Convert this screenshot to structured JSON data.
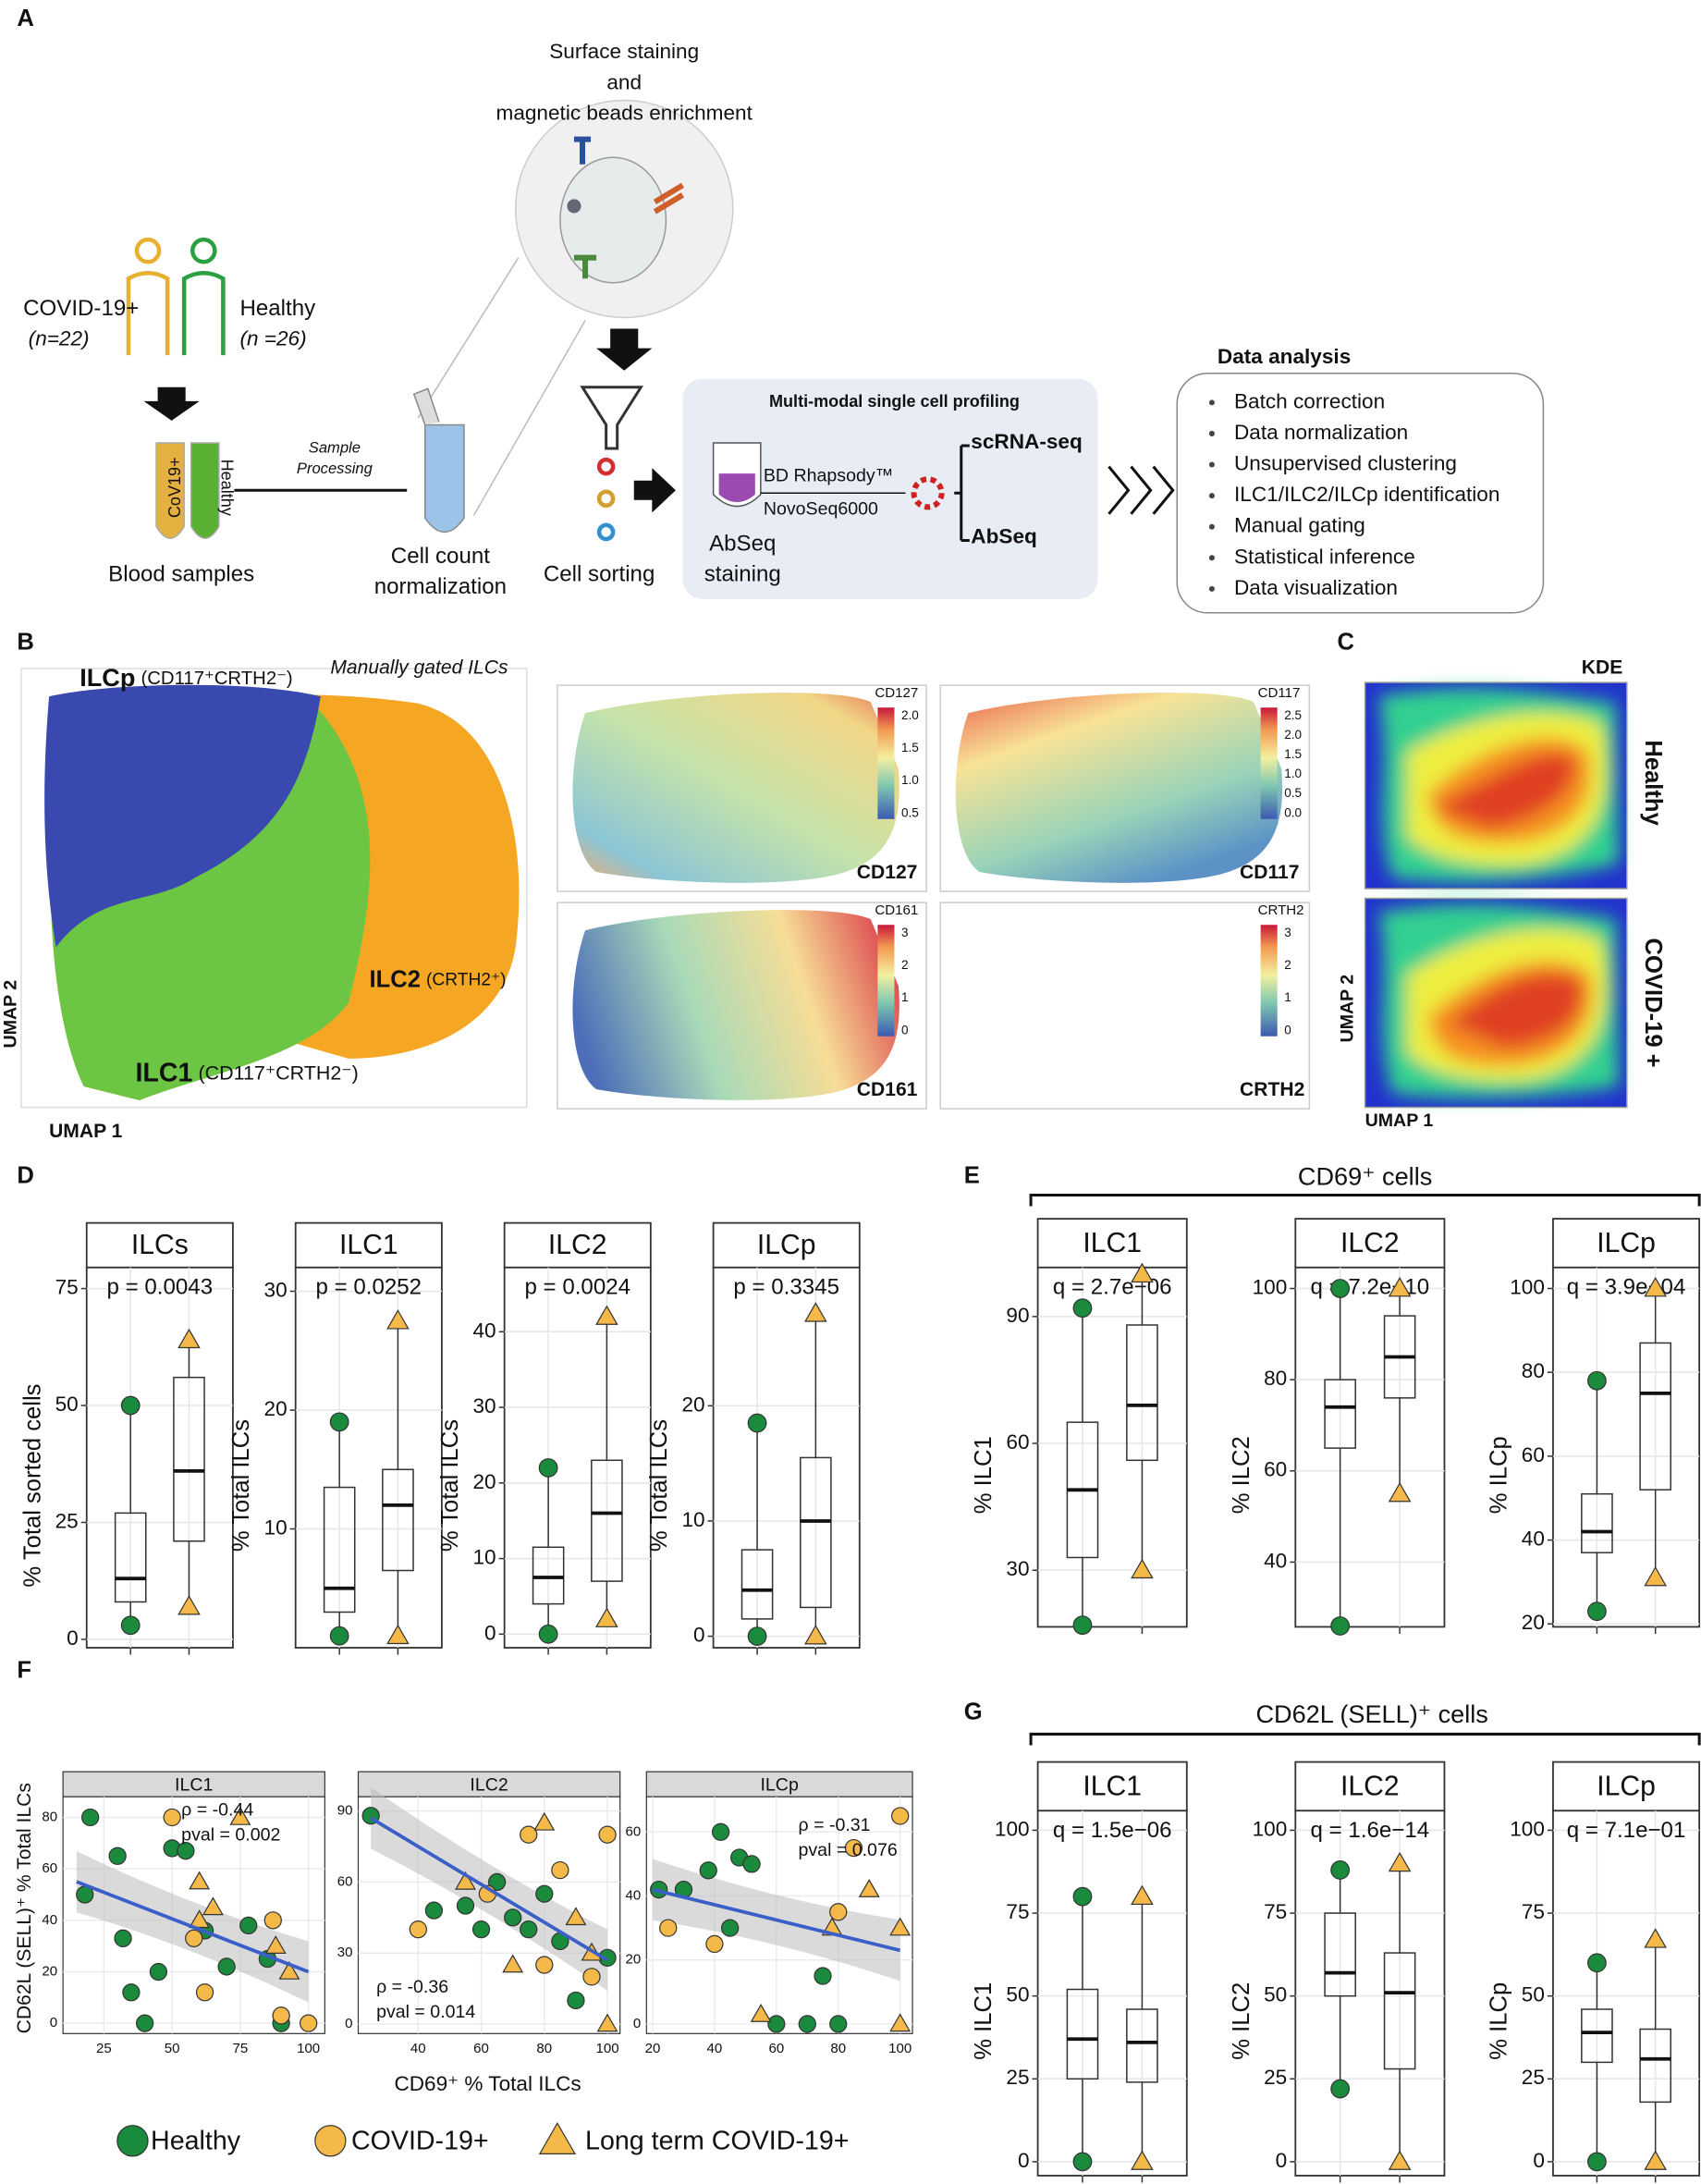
{
  "panel_labels": [
    "A",
    "B",
    "C",
    "D",
    "E",
    "F",
    "G"
  ],
  "workflow": {
    "staining": [
      "Surface staining",
      "and",
      "magnetic beads enrichment"
    ],
    "covid": {
      "label": "COVID-19+",
      "n": "(n=22)"
    },
    "healthy": {
      "label": "Healthy",
      "n": "(n =26)"
    },
    "tube_labels": [
      "CoV19+",
      "Healthy"
    ],
    "blood": "Blood samples",
    "processing": [
      "Sample",
      "Processing"
    ],
    "normalization": [
      "Cell count",
      "normalization"
    ],
    "sorting": "Cell sorting",
    "profiling": {
      "title": "Multi-modal single cell profiling",
      "platform": [
        "BD Rhapsody™",
        "NovoSeq6000"
      ],
      "outputs": [
        "scRNA-seq",
        "AbSeq"
      ],
      "staining": [
        "AbSeq",
        "staining"
      ]
    },
    "analysis": {
      "title": "Data analysis",
      "steps": [
        "Batch correction",
        "Data normalization",
        "Unsupervised clustering",
        "ILC1/ILC2/ILCp identification",
        "Manual gating",
        "Statistical inference",
        "Data visualization"
      ]
    }
  },
  "umap": {
    "clusters": [
      {
        "label": "ILCp",
        "detail": "(CD117⁺CRTH2⁻)"
      },
      {
        "label": "ILC2",
        "detail": "(CRTH2⁺)"
      },
      {
        "label": "ILC1",
        "detail": "(CD117⁺CRTH2⁻)"
      }
    ],
    "note": "Manually gated ILCs",
    "xlabel": "UMAP 1",
    "ylabel": "UMAP 2",
    "markers": [
      {
        "name": "CD127",
        "ticks": [
          "2.0",
          "1.5",
          "1.0",
          "0.5"
        ]
      },
      {
        "name": "CD117",
        "ticks": [
          "2.5",
          "2.0",
          "1.5",
          "1.0",
          "0.5",
          "0.0"
        ]
      },
      {
        "name": "CD161",
        "ticks": [
          "3",
          "2",
          "1",
          "0"
        ]
      },
      {
        "name": "CRTH2",
        "ticks": [
          "3",
          "2",
          "1",
          "0"
        ]
      }
    ]
  },
  "kde": {
    "title": "KDE",
    "conditions": [
      "Healthy",
      "COVID-19 +"
    ],
    "xlabel": "UMAP 1",
    "ylabel": "UMAP 2"
  },
  "panel_e_title": "CD69⁺ cells",
  "panel_g_title": "CD62L (SELL)⁺ cells",
  "panel_f_labels": {
    "x": "CD69⁺ % Total ILCs",
    "y": "CD62L (SELL)⁺ % Total ILCs"
  },
  "legend": [
    {
      "name": "Healthy",
      "color": "#1a8a3c",
      "shape": "circle"
    },
    {
      "name": "COVID-19+",
      "color": "#f5b949",
      "shape": "circle"
    },
    {
      "name": "Long term COVID-19+",
      "color": "#f5b949",
      "shape": "triangle"
    }
  ],
  "chart_data": [
    {
      "type": "box",
      "title": "ILCs",
      "stat": "p = 0.0043",
      "ylabel": "% Total sorted cells",
      "ylim": [
        -1.8,
        79.5
      ],
      "yticks": [
        0,
        25,
        50,
        75
      ],
      "boxes": [
        {
          "whislo": 3,
          "q1": 8,
          "med": 13,
          "q3": 27,
          "whishi": 50
        },
        {
          "whislo": 7,
          "q1": 21,
          "med": 36,
          "q3": 56,
          "whishi": 64
        }
      ]
    },
    {
      "type": "box",
      "title": "ILC1",
      "stat": "p = 0.0252",
      "ylabel": "% Total ILCs",
      "ylim": [
        0,
        32
      ],
      "yticks": [
        10,
        20,
        30
      ],
      "boxes": [
        {
          "whislo": 1,
          "q1": 3,
          "med": 5,
          "q3": 13.5,
          "whishi": 19
        },
        {
          "whislo": 1,
          "q1": 6.5,
          "med": 12,
          "q3": 15,
          "whishi": 27.5
        }
      ]
    },
    {
      "type": "box",
      "title": "ILC2",
      "stat": "p = 0.0024",
      "ylabel": "% Total ILCs",
      "ylim": [
        -1.8,
        48.5
      ],
      "yticks": [
        0,
        10,
        20,
        30,
        40
      ],
      "boxes": [
        {
          "whislo": 0,
          "q1": 4,
          "med": 7.5,
          "q3": 11.5,
          "whishi": 22
        },
        {
          "whislo": 2,
          "q1": 7,
          "med": 16,
          "q3": 23,
          "whishi": 42
        }
      ]
    },
    {
      "type": "box",
      "title": "ILCp",
      "stat": "p = 0.3345",
      "ylabel": "% Total ILCs",
      "ylim": [
        -1,
        32
      ],
      "yticks": [
        0,
        10,
        20
      ],
      "boxes": [
        {
          "whislo": 0,
          "q1": 1.5,
          "med": 4,
          "q3": 7.5,
          "whishi": 18.5
        },
        {
          "whislo": 0,
          "q1": 2.5,
          "med": 10,
          "q3": 15.5,
          "whishi": 28
        }
      ]
    },
    {
      "type": "box",
      "title": "ILC1",
      "stat": "q = 2.7e−06",
      "ylabel": "% ILC1",
      "ylim": [
        16.6,
        101.6
      ],
      "yticks": [
        30,
        60,
        90
      ],
      "boxes": [
        {
          "whislo": 17,
          "q1": 33,
          "med": 49,
          "q3": 65,
          "whishi": 92
        },
        {
          "whislo": 30,
          "q1": 56,
          "med": 69,
          "q3": 88,
          "whishi": 100
        }
      ]
    },
    {
      "type": "box",
      "title": "ILC2",
      "stat": "q = 7.2e−10",
      "ylabel": "% ILC2",
      "ylim": [
        25.8,
        104.6
      ],
      "yticks": [
        40,
        60,
        80,
        100
      ],
      "boxes": [
        {
          "whislo": 26,
          "q1": 65,
          "med": 74,
          "q3": 80,
          "whishi": 100
        },
        {
          "whislo": 55,
          "q1": 76,
          "med": 85,
          "q3": 94,
          "whishi": 100
        }
      ]
    },
    {
      "type": "box",
      "title": "ILCp",
      "stat": "q = 3.9e−04",
      "ylabel": "% ILCp",
      "ylim": [
        19.3,
        105
      ],
      "yticks": [
        20,
        40,
        60,
        80,
        100
      ],
      "boxes": [
        {
          "whislo": 23,
          "q1": 37,
          "med": 42,
          "q3": 51,
          "whishi": 78
        },
        {
          "whislo": 31,
          "q1": 52,
          "med": 75,
          "q3": 87,
          "whishi": 100
        }
      ]
    },
    {
      "type": "scatter",
      "title": "ILC1",
      "xlim": [
        10,
        106
      ],
      "xticks": [
        25,
        50,
        75,
        100
      ],
      "ylim": [
        -4,
        88
      ],
      "yticks": [
        0,
        20,
        40,
        60,
        80
      ],
      "series": [
        {
          "name": "Healthy",
          "x": [
            20,
            18,
            30,
            32,
            35,
            40,
            45,
            50,
            55,
            62,
            70,
            78,
            85,
            90
          ],
          "y": [
            80,
            50,
            65,
            33,
            12,
            0,
            20,
            68,
            67,
            36,
            22,
            38,
            25,
            0
          ]
        },
        {
          "name": "COVID-19+",
          "x": [
            50,
            58,
            62,
            87,
            90,
            100
          ],
          "y": [
            80,
            33,
            12,
            40,
            3,
            0
          ]
        },
        {
          "name": "Long term COVID-19+",
          "x": [
            60,
            75,
            65,
            88,
            60,
            93
          ],
          "y": [
            55,
            80,
            45,
            30,
            40,
            20
          ]
        }
      ],
      "fit": {
        "x": [
          15,
          100
        ],
        "y": [
          55,
          20
        ]
      },
      "annotation": [
        "ρ = -0.44",
        "pval = 0.002"
      ]
    },
    {
      "type": "scatter",
      "title": "ILC2",
      "xlim": [
        21,
        104
      ],
      "xticks": [
        40,
        60,
        80,
        100
      ],
      "ylim": [
        -4,
        96
      ],
      "yticks": [
        0,
        30,
        60,
        90
      ],
      "series": [
        {
          "name": "Healthy",
          "x": [
            25,
            45,
            55,
            60,
            65,
            70,
            75,
            80,
            85,
            90,
            100
          ],
          "y": [
            88,
            48,
            50,
            40,
            60,
            45,
            40,
            55,
            35,
            10,
            28
          ]
        },
        {
          "name": "COVID-19+",
          "x": [
            40,
            62,
            75,
            80,
            85,
            95,
            100
          ],
          "y": [
            40,
            55,
            80,
            25,
            65,
            20,
            80
          ]
        },
        {
          "name": "Long term COVID-19+",
          "x": [
            55,
            70,
            80,
            90,
            95,
            100
          ],
          "y": [
            60,
            25,
            85,
            45,
            30,
            0
          ]
        }
      ],
      "fit": {
        "x": [
          25,
          100
        ],
        "y": [
          87,
          27
        ]
      },
      "annotation": [
        "ρ = -0.36",
        "pval = 0.014"
      ]
    },
    {
      "type": "scatter",
      "title": "ILCp",
      "xlim": [
        18,
        104
      ],
      "xticks": [
        20,
        40,
        60,
        80,
        100
      ],
      "ylim": [
        -3,
        71
      ],
      "yticks": [
        0,
        20,
        40,
        60
      ],
      "series": [
        {
          "name": "Healthy",
          "x": [
            22,
            30,
            38,
            42,
            45,
            48,
            52,
            60,
            70,
            75,
            80
          ],
          "y": [
            42,
            42,
            48,
            60,
            30,
            52,
            50,
            0,
            0,
            15,
            0
          ]
        },
        {
          "name": "COVID-19+",
          "x": [
            25,
            40,
            85,
            100,
            80
          ],
          "y": [
            30,
            25,
            55,
            65,
            35
          ]
        },
        {
          "name": "Long term COVID-19+",
          "x": [
            55,
            78,
            90,
            100,
            100
          ],
          "y": [
            3,
            30,
            42,
            30,
            0
          ]
        }
      ],
      "fit": {
        "x": [
          20,
          100
        ],
        "y": [
          42,
          23
        ]
      },
      "annotation": [
        "ρ = -0.31",
        "pval = 0.076"
      ]
    },
    {
      "type": "box",
      "title": "ILC1",
      "stat": "q = 1.5e−06",
      "ylabel": "% ILC1",
      "ylim": [
        -4.2,
        105.9
      ],
      "yticks": [
        0,
        25,
        50,
        75,
        100
      ],
      "boxes": [
        {
          "whislo": 0,
          "q1": 25,
          "med": 37,
          "q3": 52,
          "whishi": 80
        },
        {
          "whislo": 0,
          "q1": 24,
          "med": 36,
          "q3": 46,
          "whishi": 80
        }
      ]
    },
    {
      "type": "box",
      "title": "ILC2",
      "stat": "q = 1.6e−14",
      "ylabel": "% ILC2",
      "ylim": [
        -4.2,
        105.9
      ],
      "yticks": [
        0,
        25,
        50,
        75,
        100
      ],
      "boxes": [
        {
          "whislo": 22,
          "q1": 50,
          "med": 57,
          "q3": 75,
          "whishi": 88
        },
        {
          "whislo": 0,
          "q1": 28,
          "med": 51,
          "q3": 63,
          "whishi": 90
        }
      ]
    },
    {
      "type": "box",
      "title": "ILCp",
      "stat": "q = 7.1e−01",
      "ylabel": "% ILCp",
      "ylim": [
        -4.2,
        105.9
      ],
      "yticks": [
        0,
        25,
        50,
        75,
        100
      ],
      "boxes": [
        {
          "whislo": 0,
          "q1": 30,
          "med": 39,
          "q3": 46,
          "whishi": 60
        },
        {
          "whislo": 0,
          "q1": 18,
          "med": 31,
          "q3": 40,
          "whishi": 67
        }
      ]
    }
  ]
}
